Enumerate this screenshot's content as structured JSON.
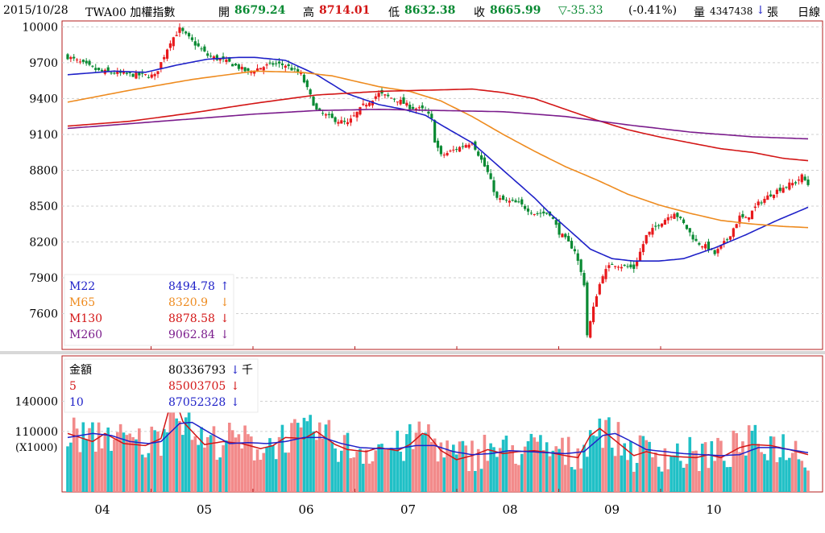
{
  "header": {
    "date": "2015/10/28",
    "symbol": "TWA00 加權指數",
    "open_label": "開",
    "open": "8679.24",
    "high_label": "高",
    "high": "8714.01",
    "low_label": "低",
    "low": "8632.38",
    "close_label": "收",
    "close": "8665.99",
    "change": "▽-35.33",
    "change_pct": "(-0.41%)",
    "volume_label": "量",
    "volume": "4347438",
    "volume_arrow": "↓",
    "volume_unit": "張",
    "period": "日線"
  },
  "colors": {
    "up": "#e8191c",
    "down": "#0a8a33",
    "m22": "#1f21c8",
    "m65": "#ee8b1f",
    "m130": "#d31515",
    "m260": "#7b1c8c",
    "vol_up": "#f28a8a",
    "vol_down": "#20c0c6",
    "frame": "#b41e1e"
  },
  "price_legend": [
    {
      "name": "M22",
      "value": "8494.78",
      "arrow": "↑",
      "color": "#1f21c8"
    },
    {
      "name": "M65",
      "value": "8320.9",
      "arrow": "↓",
      "color": "#ee8b1f"
    },
    {
      "name": "M130",
      "value": "8878.58",
      "arrow": "↓",
      "color": "#d31515"
    },
    {
      "name": "M260",
      "value": "9062.84",
      "arrow": "↓",
      "color": "#7b1c8c"
    }
  ],
  "volume_legend": [
    {
      "name": "金額",
      "value": "80336793",
      "arrow": "↓",
      "unit": "千",
      "color": "#000000"
    },
    {
      "name": "5",
      "value": "85003705",
      "arrow": "↓",
      "unit": "",
      "color": "#d31515"
    },
    {
      "name": "10",
      "value": "87052328",
      "arrow": "↓",
      "unit": "",
      "color": "#1f21c8"
    }
  ],
  "chart_data": [
    {
      "type": "candlestick",
      "y_ticks": [
        10000,
        9700,
        9400,
        9100,
        8800,
        8500,
        8200,
        7900,
        7600
      ],
      "ylim": [
        7300,
        10050
      ],
      "x_tick_labels": [
        "04",
        "05",
        "06",
        "07",
        "08",
        "09",
        "10"
      ],
      "anchors": [
        [
          0,
          9750
        ],
        [
          10,
          9630
        ],
        [
          20,
          9600
        ],
        [
          28,
          9590
        ],
        [
          30,
          9700
        ],
        [
          33,
          9880
        ],
        [
          36,
          9980
        ],
        [
          40,
          9880
        ],
        [
          45,
          9760
        ],
        [
          52,
          9700
        ],
        [
          58,
          9620
        ],
        [
          62,
          9660
        ],
        [
          66,
          9690
        ],
        [
          70,
          9680
        ],
        [
          75,
          9600
        ],
        [
          80,
          9300
        ],
        [
          85,
          9230
        ],
        [
          90,
          9190
        ],
        [
          95,
          9340
        ],
        [
          100,
          9440
        ],
        [
          106,
          9390
        ],
        [
          110,
          9330
        ],
        [
          115,
          9300
        ],
        [
          117,
          9220
        ],
        [
          118,
          9050
        ],
        [
          120,
          8920
        ],
        [
          125,
          8980
        ],
        [
          130,
          9040
        ],
        [
          135,
          8780
        ],
        [
          138,
          8560
        ],
        [
          145,
          8520
        ],
        [
          150,
          8440
        ],
        [
          155,
          8440
        ],
        [
          158,
          8280
        ],
        [
          160,
          8220
        ],
        [
          163,
          8130
        ],
        [
          166,
          7850
        ],
        [
          167,
          7420
        ],
        [
          168,
          7530
        ],
        [
          170,
          7760
        ],
        [
          172,
          7930
        ],
        [
          175,
          8020
        ],
        [
          178,
          8000
        ],
        [
          182,
          7980
        ],
        [
          186,
          8250
        ],
        [
          190,
          8350
        ],
        [
          195,
          8450
        ],
        [
          198,
          8350
        ],
        [
          202,
          8200
        ],
        [
          206,
          8150
        ],
        [
          208,
          8100
        ],
        [
          212,
          8220
        ],
        [
          216,
          8410
        ],
        [
          218,
          8390
        ],
        [
          222,
          8520
        ],
        [
          226,
          8600
        ],
        [
          230,
          8660
        ],
        [
          234,
          8700
        ],
        [
          236,
          8750
        ],
        [
          238,
          8680
        ]
      ],
      "series": [
        {
          "name": "M22",
          "points": [
            [
              0,
              9600
            ],
            [
              15,
              9630
            ],
            [
              25,
              9620
            ],
            [
              35,
              9680
            ],
            [
              45,
              9730
            ],
            [
              55,
              9745
            ],
            [
              60,
              9745
            ],
            [
              70,
              9720
            ],
            [
              80,
              9600
            ],
            [
              90,
              9440
            ],
            [
              100,
              9350
            ],
            [
              108,
              9310
            ],
            [
              115,
              9260
            ],
            [
              120,
              9180
            ],
            [
              130,
              9030
            ],
            [
              140,
              8800
            ],
            [
              150,
              8570
            ],
            [
              155,
              8440
            ],
            [
              162,
              8280
            ],
            [
              168,
              8140
            ],
            [
              175,
              8060
            ],
            [
              182,
              8040
            ],
            [
              190,
              8040
            ],
            [
              198,
              8060
            ],
            [
              208,
              8150
            ],
            [
              218,
              8260
            ],
            [
              228,
              8380
            ],
            [
              238,
              8490
            ]
          ]
        },
        {
          "name": "M65",
          "points": [
            [
              0,
              9370
            ],
            [
              20,
              9470
            ],
            [
              40,
              9560
            ],
            [
              60,
              9630
            ],
            [
              75,
              9620
            ],
            [
              85,
              9590
            ],
            [
              100,
              9500
            ],
            [
              110,
              9460
            ],
            [
              120,
              9380
            ],
            [
              130,
              9250
            ],
            [
              140,
              9100
            ],
            [
              150,
              8960
            ],
            [
              160,
              8830
            ],
            [
              170,
              8720
            ],
            [
              180,
              8600
            ],
            [
              190,
              8510
            ],
            [
              200,
              8440
            ],
            [
              210,
              8380
            ],
            [
              220,
              8350
            ],
            [
              230,
              8330
            ],
            [
              238,
              8320
            ]
          ]
        },
        {
          "name": "M130",
          "points": [
            [
              0,
              9170
            ],
            [
              20,
              9210
            ],
            [
              40,
              9280
            ],
            [
              60,
              9360
            ],
            [
              80,
              9430
            ],
            [
              100,
              9460
            ],
            [
              115,
              9470
            ],
            [
              130,
              9480
            ],
            [
              140,
              9450
            ],
            [
              150,
              9400
            ],
            [
              160,
              9310
            ],
            [
              170,
              9220
            ],
            [
              180,
              9140
            ],
            [
              190,
              9080
            ],
            [
              200,
              9030
            ],
            [
              210,
              8980
            ],
            [
              220,
              8950
            ],
            [
              230,
              8900
            ],
            [
              238,
              8880
            ]
          ]
        },
        {
          "name": "M260",
          "points": [
            [
              0,
              9150
            ],
            [
              30,
              9210
            ],
            [
              60,
              9270
            ],
            [
              80,
              9300
            ],
            [
              100,
              9310
            ],
            [
              120,
              9300
            ],
            [
              140,
              9290
            ],
            [
              160,
              9250
            ],
            [
              180,
              9180
            ],
            [
              200,
              9120
            ],
            [
              220,
              9080
            ],
            [
              238,
              9063
            ]
          ]
        }
      ]
    },
    {
      "type": "bar",
      "y_ticks": [
        140000,
        110000
      ],
      "ylabel": "(X1000)",
      "ylim": [
        50000,
        185000
      ],
      "series": [
        {
          "name": "5",
          "points": [
            [
              0,
              108000
            ],
            [
              8,
              100000
            ],
            [
              12,
              108000
            ],
            [
              18,
              98000
            ],
            [
              25,
              96000
            ],
            [
              30,
              103000
            ],
            [
              34,
              148000
            ],
            [
              37,
              120000
            ],
            [
              40,
              110000
            ],
            [
              44,
              97000
            ],
            [
              50,
              100000
            ],
            [
              56,
              98000
            ],
            [
              62,
              93000
            ],
            [
              66,
              96000
            ],
            [
              70,
              104000
            ],
            [
              76,
              103000
            ],
            [
              80,
              110000
            ],
            [
              86,
              97000
            ],
            [
              90,
              92000
            ],
            [
              96,
              90000
            ],
            [
              100,
              94000
            ],
            [
              106,
              91000
            ],
            [
              110,
              97000
            ],
            [
              114,
              108000
            ],
            [
              116,
              106000
            ],
            [
              120,
              91000
            ],
            [
              125,
              82000
            ],
            [
              130,
              86000
            ],
            [
              135,
              92000
            ],
            [
              140,
              88000
            ],
            [
              145,
              90000
            ],
            [
              150,
              91000
            ],
            [
              155,
              89000
            ],
            [
              160,
              86000
            ],
            [
              164,
              84000
            ],
            [
              168,
              106000
            ],
            [
              171,
              113000
            ],
            [
              174,
              106000
            ],
            [
              178,
              96000
            ],
            [
              182,
              86000
            ],
            [
              186,
              90000
            ],
            [
              190,
              87000
            ],
            [
              196,
              85000
            ],
            [
              202,
              84000
            ],
            [
              206,
              87000
            ],
            [
              210,
              84000
            ],
            [
              216,
              94000
            ],
            [
              220,
              97000
            ],
            [
              226,
              96000
            ],
            [
              232,
              92000
            ],
            [
              238,
              87000
            ]
          ]
        },
        {
          "name": "10",
          "points": [
            [
              0,
              104000
            ],
            [
              8,
              108000
            ],
            [
              14,
              106000
            ],
            [
              20,
              100000
            ],
            [
              26,
              98000
            ],
            [
              30,
              100000
            ],
            [
              36,
              118000
            ],
            [
              40,
              119000
            ],
            [
              46,
              108000
            ],
            [
              52,
              98000
            ],
            [
              58,
              99000
            ],
            [
              64,
              98000
            ],
            [
              70,
              100000
            ],
            [
              76,
              104000
            ],
            [
              82,
              104000
            ],
            [
              88,
              98000
            ],
            [
              94,
              94000
            ],
            [
              100,
              93000
            ],
            [
              106,
              93000
            ],
            [
              112,
              96000
            ],
            [
              118,
              96000
            ],
            [
              124,
              90000
            ],
            [
              130,
              87000
            ],
            [
              136,
              88000
            ],
            [
              142,
              91000
            ],
            [
              148,
              90000
            ],
            [
              154,
              89000
            ],
            [
              160,
              88000
            ],
            [
              166,
              90000
            ],
            [
              172,
              106000
            ],
            [
              176,
              108000
            ],
            [
              180,
              102000
            ],
            [
              186,
              92000
            ],
            [
              192,
              90000
            ],
            [
              198,
              88000
            ],
            [
              204,
              87000
            ],
            [
              210,
              86000
            ],
            [
              216,
              87000
            ],
            [
              222,
              94000
            ],
            [
              228,
              94000
            ],
            [
              234,
              91000
            ],
            [
              238,
              89000
            ]
          ]
        }
      ]
    }
  ]
}
